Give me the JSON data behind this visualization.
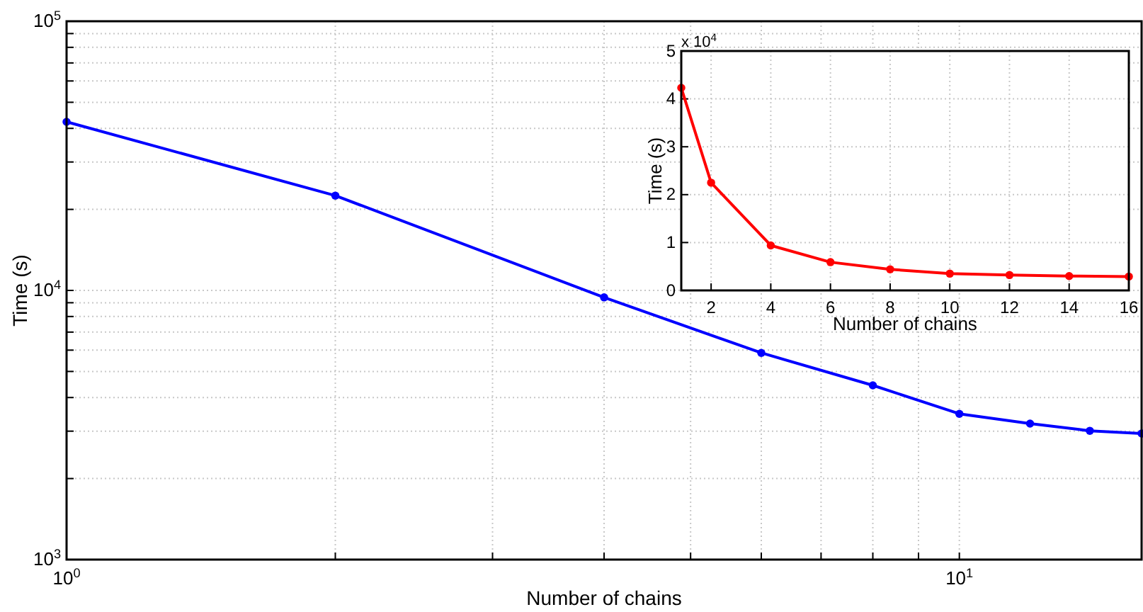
{
  "chart_data": [
    {
      "type": "line",
      "xlabel": "Number of chains",
      "ylabel": "Time (s)",
      "log": "xy",
      "grid": true,
      "marker": "circle",
      "line_style": "solid",
      "x": [
        1,
        2,
        4,
        6,
        8,
        10,
        12,
        14,
        16
      ],
      "series": [
        {
          "color": "#0000ff",
          "values": [
            42300,
            22500,
            9420,
            5860,
            4440,
            3480,
            3200,
            3010,
            2940
          ]
        }
      ],
      "xlim": [
        1,
        16
      ],
      "xticks": [
        {
          "value": 1,
          "label": "10$^{0}$"
        },
        {
          "value": 2,
          "label": null
        },
        {
          "value": 3,
          "label": null
        },
        {
          "value": 4,
          "label": null
        },
        {
          "value": 5,
          "label": null
        },
        {
          "value": 6,
          "label": null
        },
        {
          "value": 7,
          "label": null
        },
        {
          "value": 8,
          "label": null
        },
        {
          "value": 9,
          "label": null
        },
        {
          "value": 10,
          "label": "10$^{1}$"
        }
      ],
      "ylim": [
        1000,
        100000
      ],
      "yticks": [
        {
          "value": 1000,
          "label": "10$^{3}$"
        },
        {
          "value": 2000,
          "label": null
        },
        {
          "value": 3000,
          "label": null
        },
        {
          "value": 4000,
          "label": null
        },
        {
          "value": 5000,
          "label": null
        },
        {
          "value": 6000,
          "label": null
        },
        {
          "value": 7000,
          "label": null
        },
        {
          "value": 8000,
          "label": null
        },
        {
          "value": 9000,
          "label": null
        },
        {
          "value": 10000,
          "label": "10$^{4}$"
        },
        {
          "value": 20000,
          "label": null
        },
        {
          "value": 30000,
          "label": null
        },
        {
          "value": 40000,
          "label": null
        },
        {
          "value": 50000,
          "label": null
        },
        {
          "value": 60000,
          "label": null
        },
        {
          "value": 70000,
          "label": null
        },
        {
          "value": 80000,
          "label": null
        },
        {
          "value": 90000,
          "label": null
        },
        {
          "value": 100000,
          "label": "10$^{5}$"
        }
      ]
    },
    {
      "type": "line",
      "xlabel": "Number of chains",
      "ylabel": "Time (s)",
      "grid": true,
      "marker": "circle",
      "line_style": "solid",
      "annotations": [
        "x 10$^{4}$"
      ],
      "x": [
        1,
        2,
        4,
        6,
        8,
        10,
        12,
        14,
        16
      ],
      "series": [
        {
          "color": "#ff0000",
          "values": [
            4.23,
            2.25,
            0.94,
            0.59,
            0.44,
            0.35,
            0.32,
            0.3,
            0.29
          ]
        }
      ],
      "xlim": [
        1,
        16
      ],
      "xticks": [
        2,
        4,
        6,
        8,
        10,
        12,
        14,
        16
      ],
      "ylim": [
        0,
        5
      ],
      "yticks": [
        0,
        1,
        2,
        3,
        4,
        5
      ]
    }
  ]
}
